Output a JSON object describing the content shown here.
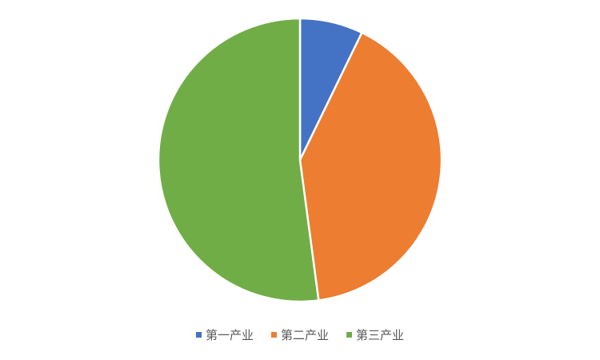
{
  "chart_data": {
    "type": "pie",
    "title": "",
    "categories": [
      "第一产业",
      "第二产业",
      "第三产业"
    ],
    "values": [
      7.2,
      40.7,
      52.1
    ],
    "colors": [
      "#4472C4",
      "#ED7D31",
      "#70AD47"
    ],
    "start_angle_deg": 0,
    "direction": "clockwise",
    "legend_position": "bottom"
  }
}
